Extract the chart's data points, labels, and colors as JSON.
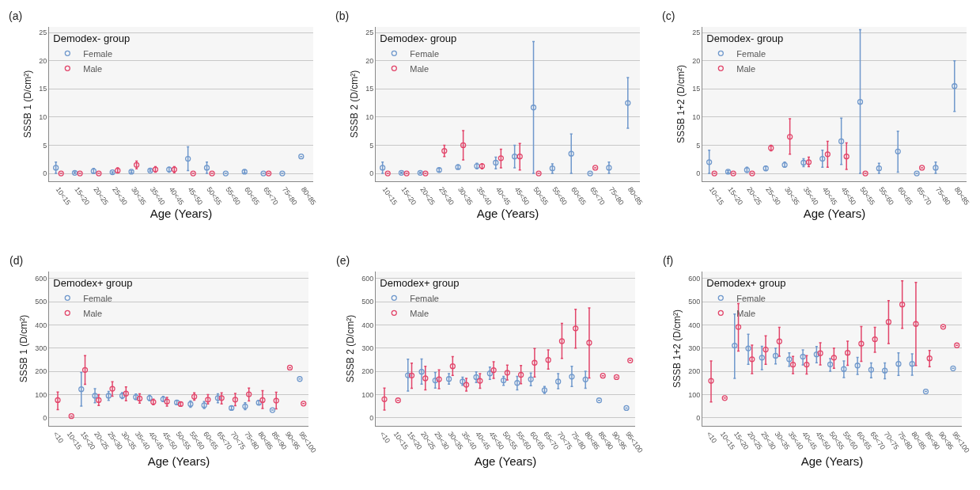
{
  "chart_data": [
    {
      "type": "scatter",
      "annotations": [
        "(a)"
      ],
      "xlabel": "Age (Years)",
      "ylabel": "SSSB 1 (D/cm²)",
      "legend_title": "Demodex- group",
      "legend": "top left",
      "grid": "y",
      "marker": "circle",
      "ylim": [
        -1.4,
        26
      ],
      "yticks": [
        0,
        5,
        10,
        15,
        20,
        25
      ],
      "categories": [
        "10<15",
        "15<20",
        "20<25",
        "25<30",
        "30<35",
        "35<40",
        "40<45",
        "45<50",
        "50<55",
        "55<60",
        "60<65",
        "65<70",
        "75<80",
        "80<85"
      ],
      "series": [
        {
          "name": "Female",
          "color": "#6f98cc",
          "values": [
            1.0,
            0.1,
            0.4,
            0.2,
            0.3,
            0.5,
            0.7,
            2.6,
            1.0,
            0,
            0.3,
            0,
            0,
            3.0
          ],
          "errors": [
            [
              0,
              2
            ],
            [
              0,
              0.3
            ],
            [
              0,
              0.9
            ],
            [
              0,
              0.3
            ],
            [
              0.1,
              0.5
            ],
            [
              0.4,
              0.7
            ],
            [
              0.2,
              1.1
            ],
            [
              0.5,
              4.7
            ],
            [
              0,
              2.0
            ],
            null,
            [
              0.1,
              0.6
            ],
            null,
            null,
            null
          ]
        },
        {
          "name": "Male",
          "color": "#e2456a",
          "values": [
            0,
            0,
            0,
            0.5,
            1.5,
            0.7,
            0.7,
            0,
            0,
            null,
            null,
            0,
            null,
            null
          ],
          "errors": [
            null,
            null,
            null,
            [
              0.1,
              1.0
            ],
            [
              0.8,
              2.2
            ],
            [
              0.2,
              1.2
            ],
            [
              0.1,
              1.2
            ],
            null,
            null,
            null,
            null,
            null,
            null,
            null
          ]
        }
      ]
    },
    {
      "type": "scatter",
      "annotations": [
        "(b)"
      ],
      "xlabel": "Age (Years)",
      "ylabel": "SSSB 2 (D/cm²)",
      "legend_title": "Demodex- group",
      "legend": "top left",
      "grid": "y",
      "marker": "circle",
      "ylim": [
        -1.4,
        26
      ],
      "yticks": [
        0,
        5,
        10,
        15,
        20,
        25
      ],
      "categories": [
        "10<15",
        "15<20",
        "20<25",
        "25<30",
        "30<35",
        "35<40",
        "40<45",
        "45<50",
        "50<55",
        "55<60",
        "60<65",
        "65<70",
        "75<80",
        "80<85"
      ],
      "series": [
        {
          "name": "Female",
          "color": "#6f98cc",
          "values": [
            1.0,
            0.1,
            0.1,
            0.6,
            1.1,
            1.3,
            1.9,
            3.0,
            11.7,
            0.9,
            3.5,
            0,
            1.0,
            12.5
          ],
          "errors": [
            [
              0,
              2
            ],
            [
              0,
              0.2
            ],
            [
              0,
              0.2
            ],
            [
              0.3,
              0.9
            ],
            [
              0.8,
              1.5
            ],
            [
              0.8,
              1.8
            ],
            [
              0.8,
              2.9
            ],
            [
              1.0,
              5.0
            ],
            [
              0,
              23.4
            ],
            [
              0,
              1.7
            ],
            [
              0,
              7.0
            ],
            null,
            [
              0,
              2.0
            ],
            [
              8,
              17
            ]
          ]
        },
        {
          "name": "Male",
          "color": "#e2456a",
          "values": [
            0,
            0,
            0,
            4.0,
            5.0,
            1.3,
            2.7,
            3.0,
            0,
            null,
            null,
            1.0,
            null,
            null
          ],
          "errors": [
            null,
            null,
            null,
            [
              3.0,
              5.0
            ],
            [
              2.4,
              7.6
            ],
            [
              0.8,
              1.7
            ],
            [
              1.0,
              4.3
            ],
            [
              0.6,
              5.3
            ],
            null,
            null,
            null,
            null,
            null,
            null
          ]
        }
      ]
    },
    {
      "type": "scatter",
      "annotations": [
        "(c)"
      ],
      "xlabel": "Age (Years)",
      "ylabel": "SSSB 1+2 (D/cm²)",
      "legend_title": "Demodex- group",
      "legend": "top left",
      "grid": "y",
      "marker": "circle",
      "ylim": [
        -1.4,
        26
      ],
      "yticks": [
        0,
        5,
        10,
        15,
        20,
        25
      ],
      "categories": [
        "10<15",
        "15<20",
        "20<25",
        "25<30",
        "30<35",
        "35<40",
        "40<45",
        "45<50",
        "50<55",
        "55<60",
        "60<65",
        "65<70",
        "75<80",
        "80<85"
      ],
      "series": [
        {
          "name": "Female",
          "color": "#6f98cc",
          "values": [
            2.0,
            0.3,
            0.6,
            0.9,
            1.5,
            1.9,
            2.6,
            5.7,
            12.7,
            0.9,
            3.9,
            0,
            1.0,
            15.5
          ],
          "errors": [
            [
              0,
              4.1
            ],
            [
              0.1,
              0.5
            ],
            [
              0.2,
              1.1
            ],
            [
              0.5,
              1.3
            ],
            [
              1.1,
              2.0
            ],
            [
              1.2,
              2.6
            ],
            [
              1.1,
              4.1
            ],
            [
              1.6,
              9.8
            ],
            [
              0,
              25.5
            ],
            [
              0,
              1.8
            ],
            [
              0.2,
              7.5
            ],
            null,
            [
              0,
              2.0
            ],
            [
              11,
              20
            ]
          ]
        },
        {
          "name": "Male",
          "color": "#e2456a",
          "values": [
            0,
            0,
            0,
            4.5,
            6.5,
            2.0,
            3.4,
            3.0,
            0,
            null,
            null,
            1.0,
            null,
            null
          ],
          "errors": [
            null,
            null,
            null,
            [
              4.0,
              5.0
            ],
            [
              3.4,
              9.7
            ],
            [
              1.2,
              2.9
            ],
            [
              1.1,
              5.7
            ],
            [
              0.7,
              5.4
            ],
            null,
            null,
            null,
            null,
            null,
            null
          ]
        }
      ]
    },
    {
      "type": "scatter",
      "annotations": [
        "(d)"
      ],
      "xlabel": "Age (Years)",
      "ylabel": "SSSB 1 (D/cm²)",
      "legend_title": "Demodex+ group",
      "legend": "top left",
      "grid": "y",
      "marker": "circle",
      "ylim": [
        -35,
        630
      ],
      "yticks": [
        0,
        100,
        200,
        300,
        400,
        500,
        600
      ],
      "categories": [
        "<10",
        "10<15",
        "15<20",
        "20<25",
        "25<30",
        "30<35",
        "35<40",
        "40<45",
        "45<50",
        "50<55",
        "55<60",
        "60<65",
        "65<70",
        "70<75",
        "75<80",
        "80<85",
        "85<90",
        "90<95",
        "95<100"
      ],
      "series": [
        {
          "name": "Female",
          "color": "#6f98cc",
          "values": [
            null,
            null,
            123,
            95,
            95,
            95,
            89,
            85,
            80,
            66,
            59,
            54,
            85,
            42,
            49,
            65,
            33,
            null,
            167
          ],
          "errors": [
            null,
            null,
            [
              50,
              195
            ],
            [
              65,
              125
            ],
            [
              75,
              113
            ],
            [
              83,
              108
            ],
            [
              78,
              102
            ],
            [
              73,
              97
            ],
            [
              70,
              92
            ],
            [
              56,
              75
            ],
            [
              45,
              72
            ],
            [
              40,
              70
            ],
            [
              65,
              103
            ],
            [
              35,
              50
            ],
            [
              35,
              65
            ],
            [
              55,
              75
            ],
            null,
            null,
            null
          ]
        },
        {
          "name": "Male",
          "color": "#e2456a",
          "values": [
            76,
            7,
            206,
            76,
            125,
            104,
            83,
            68,
            70,
            59,
            91,
            78,
            85,
            78,
            101,
            76,
            74,
            216,
            61
          ],
          "errors": [
            [
              35,
              111
            ],
            null,
            [
              144,
              268
            ],
            [
              53,
              100
            ],
            [
              93,
              155
            ],
            [
              73,
              133
            ],
            [
              63,
              103
            ],
            [
              56,
              80
            ],
            [
              50,
              88
            ],
            [
              50,
              68
            ],
            [
              76,
              107
            ],
            [
              60,
              100
            ],
            [
              60,
              107
            ],
            [
              52,
              105
            ],
            [
              72,
              128
            ],
            [
              40,
              117
            ],
            [
              38,
              110
            ],
            null,
            null
          ]
        }
      ]
    },
    {
      "type": "scatter",
      "annotations": [
        "(e)"
      ],
      "xlabel": "Age (Years)",
      "ylabel": "SSSB 2 (D/cm²)",
      "legend_title": "Demodex+ group",
      "legend": "top left",
      "grid": "y",
      "marker": "circle",
      "ylim": [
        -35,
        630
      ],
      "yticks": [
        0,
        100,
        200,
        300,
        400,
        500,
        600
      ],
      "categories": [
        "<10",
        "10<15",
        "15<20",
        "20<25",
        "25<30",
        "30<35",
        "35<40",
        "40<45",
        "45<50",
        "50<55",
        "55<60",
        "60<65",
        "65<70",
        "70<75",
        "75<80",
        "80<85",
        "85<90",
        "90<95",
        "95<100"
      ],
      "series": [
        {
          "name": "Female",
          "color": "#6f98cc",
          "values": [
            null,
            null,
            183,
            198,
            161,
            167,
            156,
            175,
            191,
            161,
            150,
            166,
            119,
            156,
            177,
            165,
            75,
            null,
            42
          ],
          "errors": [
            null,
            null,
            [
              115,
              252
            ],
            [
              145,
              253
            ],
            [
              128,
              195
            ],
            [
              145,
              190
            ],
            [
              140,
              175
            ],
            [
              152,
              198
            ],
            [
              165,
              218
            ],
            [
              140,
              178
            ],
            [
              120,
              178
            ],
            [
              138,
              193
            ],
            [
              105,
              135
            ],
            [
              125,
              190
            ],
            [
              135,
              222
            ],
            [
              127,
              200
            ],
            null,
            null,
            null
          ]
        },
        {
          "name": "Male",
          "color": "#e2456a",
          "values": [
            80,
            75,
            182,
            170,
            166,
            222,
            142,
            159,
            205,
            194,
            185,
            237,
            249,
            330,
            385,
            323,
            181,
            175,
            247
          ],
          "errors": [
            [
              33,
              128
            ],
            null,
            [
              127,
              235
            ],
            [
              120,
              222
            ],
            [
              125,
              206
            ],
            [
              182,
              263
            ],
            [
              115,
              170
            ],
            [
              127,
              190
            ],
            [
              170,
              241
            ],
            [
              163,
              227
            ],
            [
              147,
              225
            ],
            [
              176,
              298
            ],
            [
              210,
              292
            ],
            [
              256,
              407
            ],
            [
              300,
              467
            ],
            [
              171,
              473
            ],
            null,
            null,
            null
          ]
        }
      ]
    },
    {
      "type": "scatter",
      "annotations": [
        "(f)"
      ],
      "xlabel": "Age (Years)",
      "ylabel": "SSSB 1+2 (D/cm²)",
      "legend_title": "Demodex+ group",
      "legend": "top left",
      "grid": "y",
      "marker": "circle",
      "ylim": [
        -35,
        630
      ],
      "yticks": [
        0,
        100,
        200,
        300,
        400,
        500,
        600
      ],
      "categories": [
        "<10",
        "10<15",
        "15<20",
        "20<25",
        "25<30",
        "30<35",
        "35<40",
        "40<45",
        "45<50",
        "50<55",
        "55<60",
        "60<65",
        "65<70",
        "70<75",
        "75<80",
        "80<85",
        "85<90",
        "90<95",
        "95<100"
      ],
      "series": [
        {
          "name": "Female",
          "color": "#6f98cc",
          "values": [
            null,
            null,
            311,
            299,
            259,
            267,
            252,
            263,
            273,
            230,
            210,
            225,
            207,
            203,
            232,
            232,
            113,
            null,
            213
          ],
          "errors": [
            null,
            null,
            [
              170,
              447
            ],
            [
              230,
              360
            ],
            [
              207,
              308
            ],
            [
              232,
              300
            ],
            [
              222,
              280
            ],
            [
              228,
              292
            ],
            [
              237,
              307
            ],
            [
              200,
              255
            ],
            [
              173,
              245
            ],
            [
              187,
              260
            ],
            [
              172,
              236
            ],
            [
              168,
              236
            ],
            [
              182,
              280
            ],
            [
              183,
              275
            ],
            null,
            null,
            null
          ]
        },
        {
          "name": "Male",
          "color": "#e2456a",
          "values": [
            159,
            85,
            391,
            252,
            294,
            329,
            229,
            229,
            278,
            259,
            280,
            319,
            338,
            413,
            488,
            404,
            256,
            392,
            312
          ],
          "errors": [
            [
              68,
              245
            ],
            null,
            [
              287,
              492
            ],
            [
              190,
              313
            ],
            [
              230,
              353
            ],
            [
              265,
              390
            ],
            [
              190,
              264
            ],
            [
              188,
              268
            ],
            [
              228,
              323
            ],
            [
              213,
              300
            ],
            [
              226,
              330
            ],
            [
              243,
              393
            ],
            [
              282,
              390
            ],
            [
              320,
              505
            ],
            [
              385,
              590
            ],
            [
              225,
              583
            ],
            [
              220,
              290
            ],
            null,
            null
          ]
        }
      ]
    }
  ]
}
